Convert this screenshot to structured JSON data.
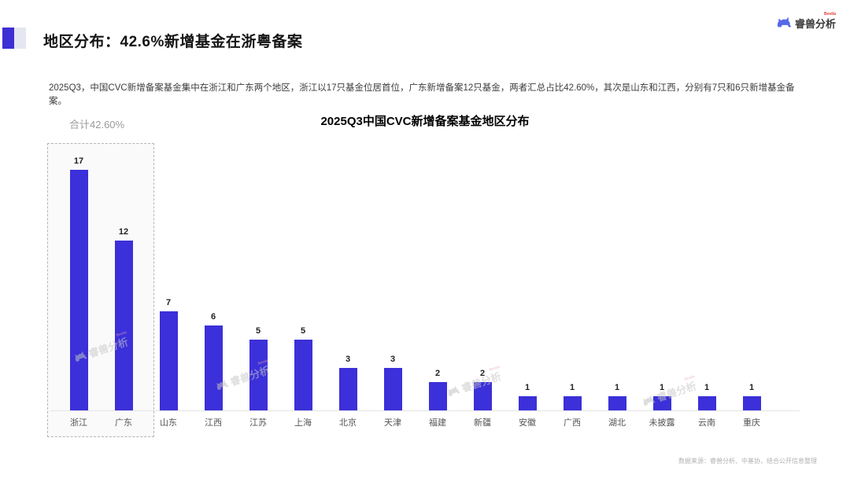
{
  "header": {
    "title": "地区分布：42.6%新增基金在浙粤备案",
    "logo_text": "睿兽分析",
    "logo_superscript": "Bestla"
  },
  "summary": "2025Q3，中国CVC新增备案基金集中在浙江和广东两个地区，浙江以17只基金位居首位，广东新增备案12只基金，两者汇总占比42.60%，其次是山东和江西，分别有7只和6只新增基金备案。",
  "chart_data": {
    "type": "bar",
    "title": "2025Q3中国CVC新增备案基金地区分布",
    "categories": [
      "浙江",
      "广东",
      "山东",
      "江西",
      "江苏",
      "上海",
      "北京",
      "天津",
      "福建",
      "新疆",
      "安徽",
      "广西",
      "湖北",
      "未披露",
      "云南",
      "重庆"
    ],
    "values": [
      17,
      12,
      7,
      6,
      5,
      5,
      3,
      3,
      2,
      2,
      1,
      1,
      1,
      1,
      1,
      1
    ],
    "annotation": {
      "label": "合计42.60%",
      "covers": [
        "浙江",
        "广东"
      ]
    },
    "bar_color": "#3B30D9",
    "ylim": [
      0,
      18
    ],
    "grid": false,
    "value_labels": true,
    "xlabel": "",
    "ylabel": ""
  },
  "watermark": {
    "text": "睿兽分析",
    "superscript": "Bestla"
  },
  "footer": {
    "data_source": "数据来源：睿兽分析、中基协，结合公开信息整理"
  }
}
